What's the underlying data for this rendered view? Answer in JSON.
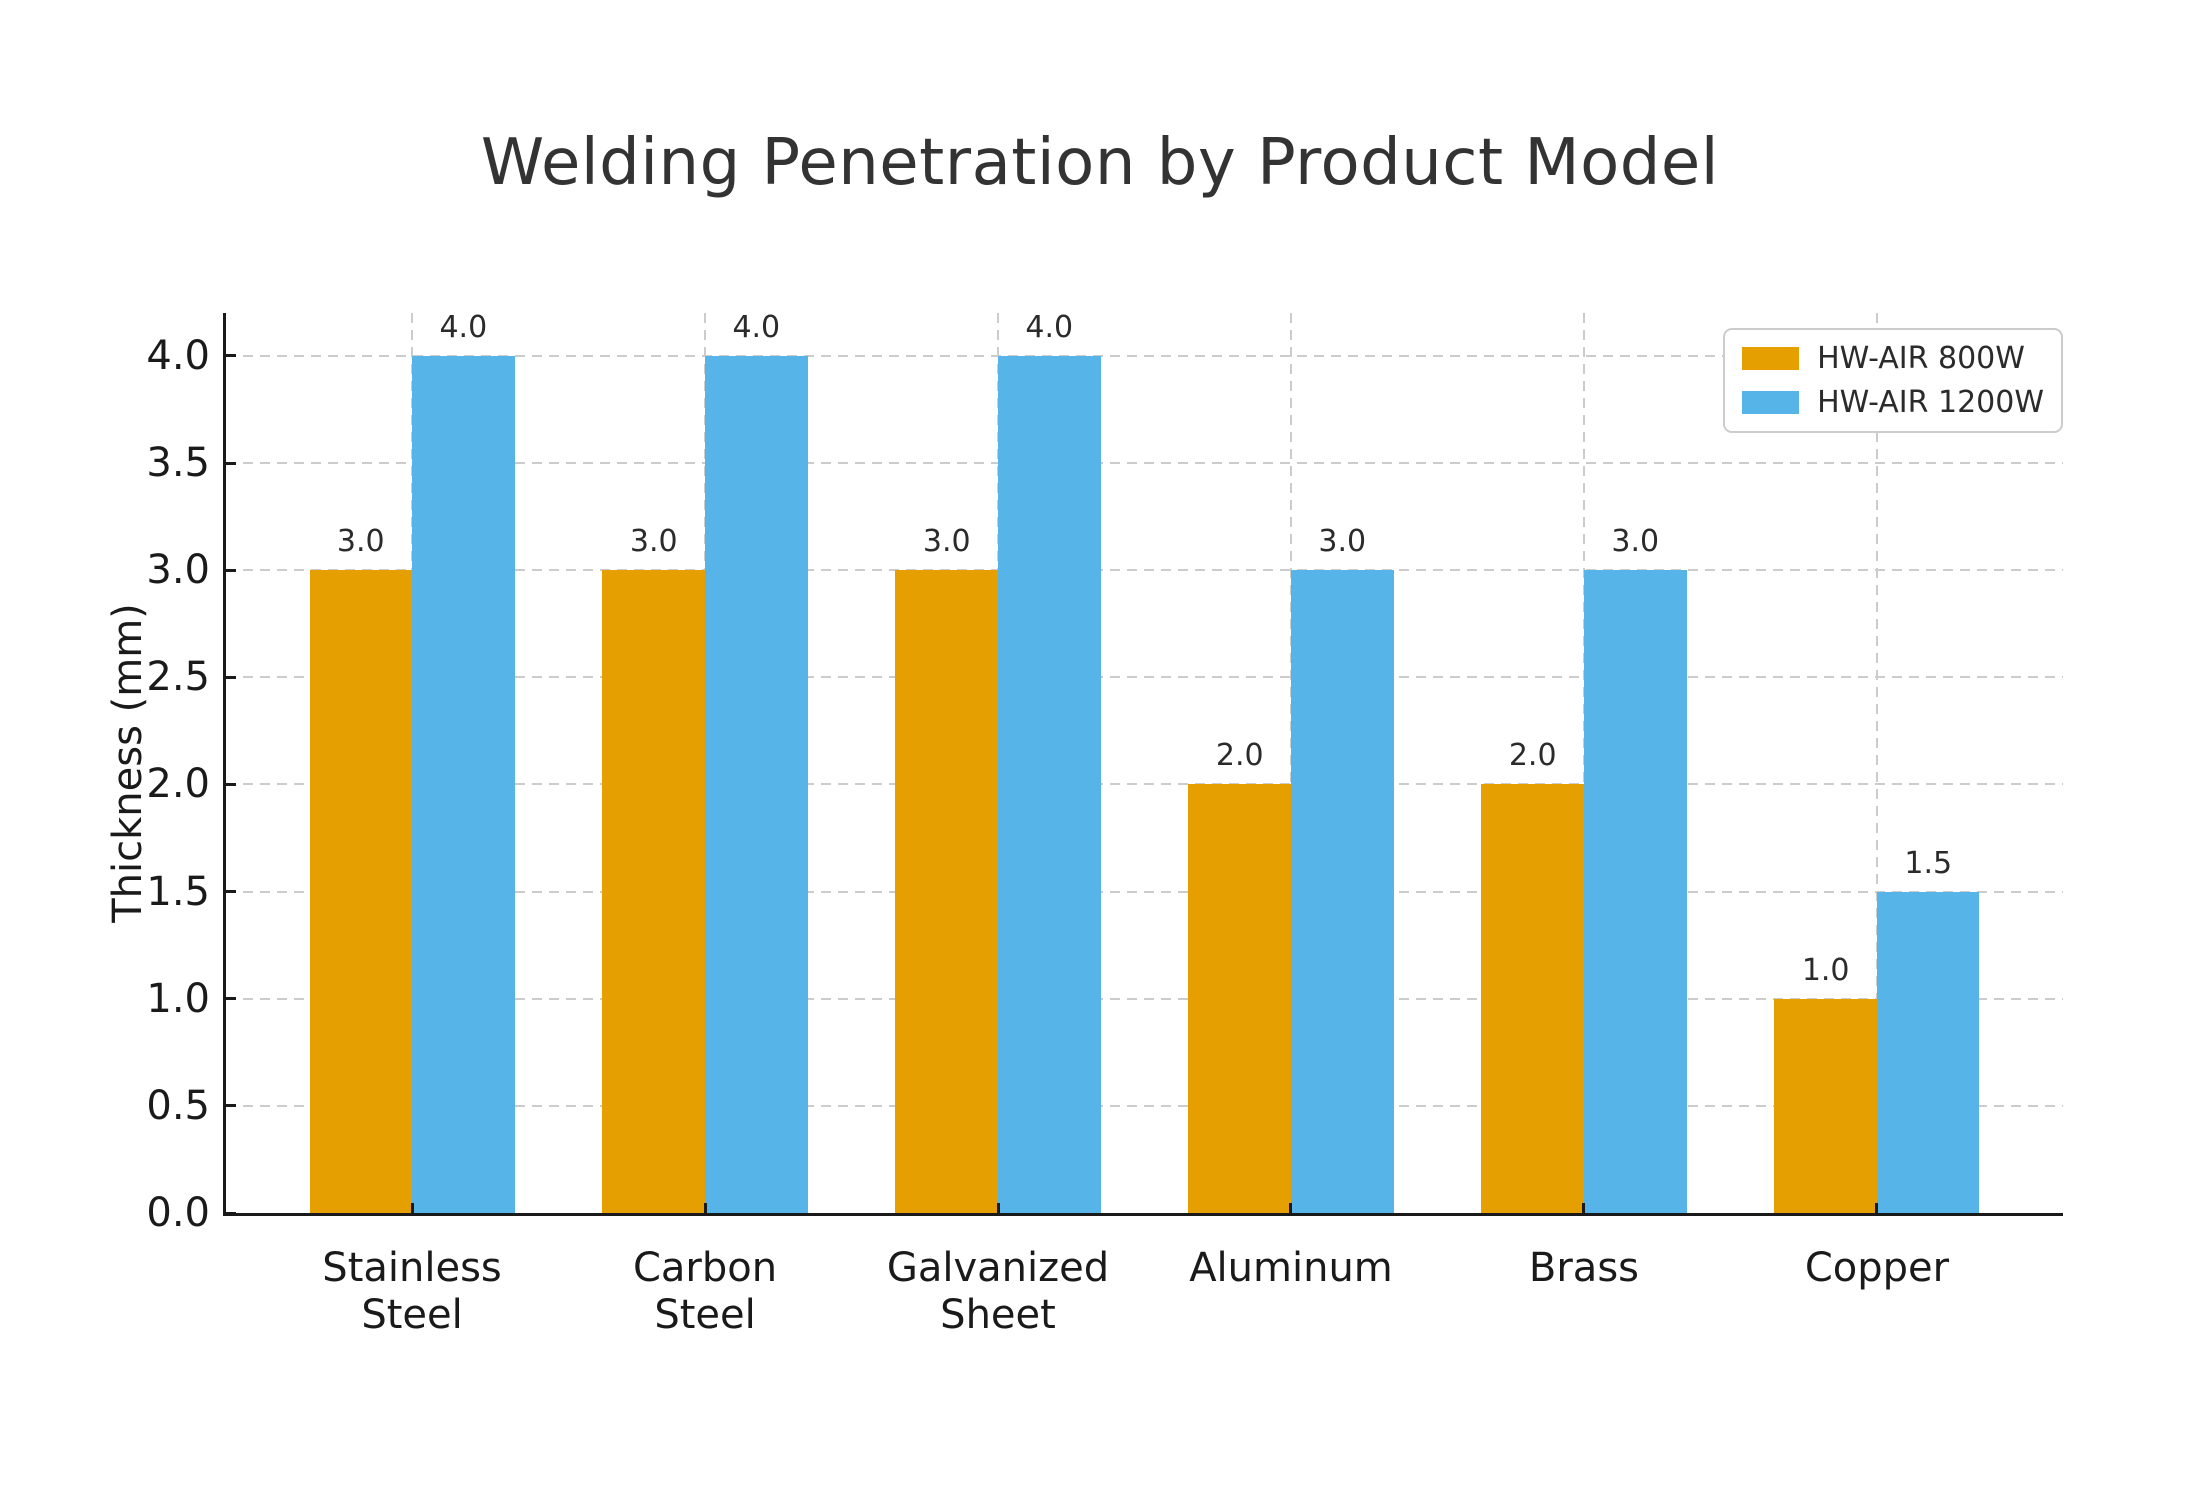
{
  "figure": {
    "background": "#ffffff"
  },
  "chart_data": {
    "type": "bar",
    "title": "Welding Penetration by Product Model",
    "ylabel": "Thickness (mm)",
    "xlabel": "",
    "categories": [
      "Stainless\nSteel",
      "Carbon\nSteel",
      "Galvanized\nSheet",
      "Aluminum",
      "Brass",
      "Copper"
    ],
    "series": [
      {
        "name": "HW-AIR 800W",
        "color": "#E69F00",
        "values": [
          3.0,
          3.0,
          3.0,
          2.0,
          2.0,
          1.0
        ]
      },
      {
        "name": "HW-AIR 1200W",
        "color": "#56B4E9",
        "values": [
          4.0,
          4.0,
          4.0,
          3.0,
          3.0,
          1.5
        ]
      }
    ],
    "bar_value_labels": [
      [
        "3.0",
        "3.0",
        "3.0",
        "2.0",
        "2.0",
        "1.0"
      ],
      [
        "4.0",
        "4.0",
        "4.0",
        "3.0",
        "3.0",
        "1.5"
      ]
    ],
    "ylim": [
      0,
      4.2
    ],
    "yticks": [
      0,
      0.5,
      1,
      1.5,
      2,
      2.5,
      3,
      3.5,
      4
    ],
    "ytick_labels": [
      "0.0",
      "0.5",
      "1.0",
      "1.5",
      "2.0",
      "2.5",
      "3.0",
      "3.5",
      "4.0"
    ],
    "grid": {
      "style": "dashed",
      "color": "#cccccc",
      "horizontal": true,
      "vertical": true
    },
    "legend": {
      "position": "upper right",
      "border_color": "#cccccc",
      "background": "#ffffff"
    },
    "axis_color": "#1a1a1a",
    "text_color": "#333333"
  }
}
